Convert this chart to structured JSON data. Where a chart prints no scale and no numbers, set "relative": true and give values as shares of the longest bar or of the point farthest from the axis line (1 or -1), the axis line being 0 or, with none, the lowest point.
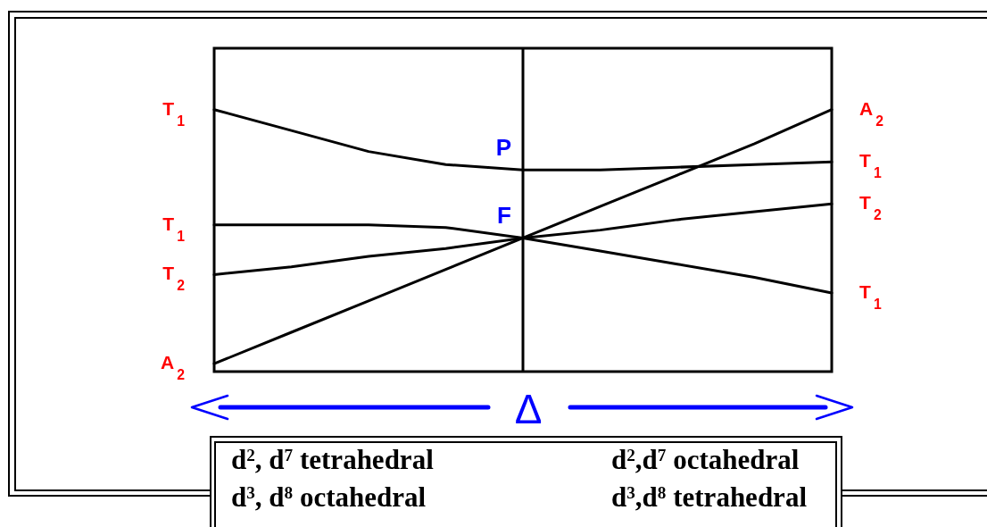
{
  "chart_data": {
    "type": "line",
    "relative": true,
    "categories": [
      null,
      null,
      null,
      null,
      null,
      null,
      null,
      null,
      null
    ],
    "xlabel": "Δ",
    "series": [
      {
        "name": "T$_{1}$",
        "color": "#000000",
        "values": [
          1.0,
          0.92,
          0.84,
          0.79,
          0.77,
          0.77,
          0.78,
          0.79,
          0.8
        ]
      },
      {
        "name": "T$_{1}$",
        "color": "#000000",
        "values": [
          0.56,
          0.56,
          0.56,
          0.55,
          0.51,
          0.46,
          0.41,
          0.36,
          0.3
        ]
      },
      {
        "name": "T$_{2}$",
        "color": "#000000",
        "values": [
          0.37,
          0.4,
          0.44,
          0.47,
          0.51,
          0.54,
          0.58,
          0.61,
          0.64
        ]
      },
      {
        "name": "A$_{2}$",
        "color": "#000000",
        "values": [
          0.03,
          0.15,
          0.27,
          0.39,
          0.51,
          0.63,
          0.75,
          0.87,
          1.0
        ]
      }
    ],
    "annotations": [
      {
        "text": "P",
        "y": 0.77
      },
      {
        "text": "F",
        "y": 0.51
      },
      "d$^{2}$, d$^{7}$ tetrahedral",
      "d$^{2}$,d$^{7}$ octahedral",
      "d$^{3}$, d$^{8}$ octahedral",
      "d$^{3}$,d$^{8}$ tetrahedral"
    ]
  }
}
